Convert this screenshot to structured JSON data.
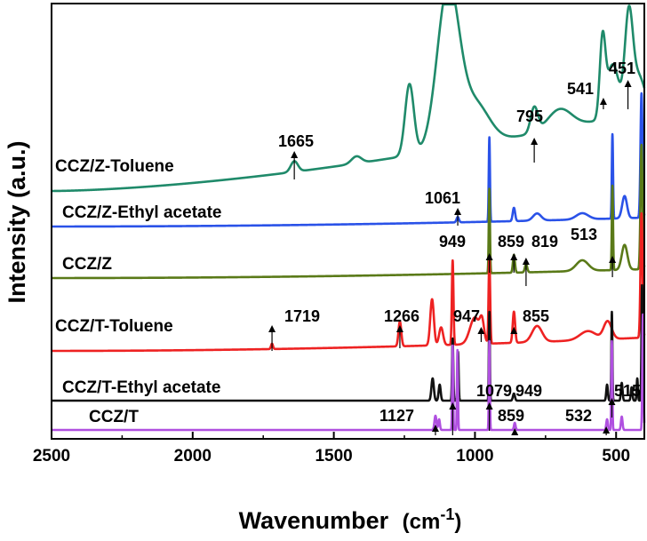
{
  "chart_data": {
    "type": "line",
    "title": "",
    "xlabel": "Wavenumber",
    "xlabel_unit": "(cm",
    "xlabel_unit_sup": "-1",
    "xlabel_unit_close": ")",
    "ylabel": "Intensity (a.u.)",
    "xlim": [
      2500,
      400
    ],
    "x_reversed": true,
    "xticks": [
      2500,
      2000,
      1500,
      1000,
      500
    ],
    "y_ticks_shown": false,
    "grid": false,
    "series": [
      {
        "name": "CCZ/Z-Toluene",
        "color": "#1f8a6a",
        "peaks": [
          {
            "label": "1665",
            "x": 1640
          },
          {
            "label": "795",
            "x": 790
          },
          {
            "label": "541",
            "x": 545
          },
          {
            "label": "451",
            "x": 458
          }
        ]
      },
      {
        "name": "CCZ/Z-Ethyl acetate",
        "color": "#2a52e8",
        "peaks": [
          {
            "label": "1061",
            "x": 1061
          }
        ]
      },
      {
        "name": "CCZ/Z",
        "color": "#5a7a18",
        "peaks": [
          {
            "label": "949",
            "x": 949
          },
          {
            "label": "859",
            "x": 862
          },
          {
            "label": "819",
            "x": 819
          },
          {
            "label": "513",
            "x": 513
          }
        ]
      },
      {
        "name": "CCZ/T-Toluene",
        "color": "#ee2222",
        "peaks": [
          {
            "label": "1719",
            "x": 1719
          },
          {
            "label": "1266",
            "x": 1266
          },
          {
            "label": "947",
            "x": 978
          },
          {
            "label": "855",
            "x": 862
          }
        ]
      },
      {
        "name": "CCZ/T-Ethyl acetate",
        "color": "#111111",
        "peaks": []
      },
      {
        "name": "CCZ/T",
        "color": "#b050e0",
        "peaks": [
          {
            "label": "1127",
            "x": 1140
          },
          {
            "label": "1079",
            "x": 1079
          },
          {
            "label": "949",
            "x": 949
          },
          {
            "label": "859",
            "x": 859
          },
          {
            "label": "532",
            "x": 535
          },
          {
            "label": "515",
            "x": 515
          }
        ]
      }
    ]
  }
}
